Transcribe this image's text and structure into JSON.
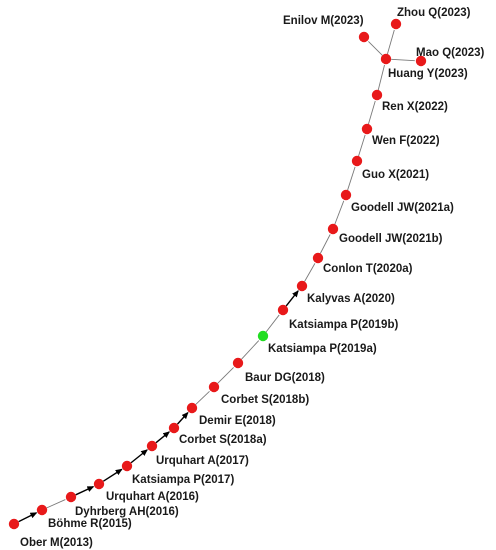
{
  "colors": {
    "node": "#e8191a",
    "highlight_node": "#22dd22",
    "edge": "#7a7a7a",
    "arrow": "#000000",
    "label": "#1a1a1a"
  },
  "nodes": [
    {
      "id": "ober2013",
      "label": "Ober M(2013)"
    },
    {
      "id": "bohme2015",
      "label": "Böhme R(2015)"
    },
    {
      "id": "dyhrberg2016",
      "label": "Dyhrberg AH(2016)"
    },
    {
      "id": "urquhart2016",
      "label": "Urquhart A(2016)"
    },
    {
      "id": "katsiampa2017",
      "label": "Katsiampa P(2017)"
    },
    {
      "id": "urquhart2017",
      "label": "Urquhart A(2017)"
    },
    {
      "id": "corbet2018a",
      "label": "Corbet S(2018a)"
    },
    {
      "id": "demir2018",
      "label": "Demir E(2018)"
    },
    {
      "id": "corbet2018b",
      "label": "Corbet S(2018b)"
    },
    {
      "id": "baur2018",
      "label": "Baur DG(2018)"
    },
    {
      "id": "katsiampa2019a",
      "label": "Katsiampa P(2019a)",
      "highlight": true
    },
    {
      "id": "katsiampa2019b",
      "label": "Katsiampa P(2019b)"
    },
    {
      "id": "kalyvas2020",
      "label": "Kalyvas A(2020)"
    },
    {
      "id": "conlon2020a",
      "label": "Conlon T(2020a)"
    },
    {
      "id": "goodell2021b",
      "label": "Goodell JW(2021b)"
    },
    {
      "id": "goodell2021a",
      "label": "Goodell JW(2021a)"
    },
    {
      "id": "guo2021",
      "label": "Guo X(2021)"
    },
    {
      "id": "wen2022",
      "label": "Wen F(2022)"
    },
    {
      "id": "ren2022",
      "label": "Ren X(2022)"
    },
    {
      "id": "huang2023",
      "label": "Huang Y(2023)"
    },
    {
      "id": "enilov2023",
      "label": "Enilov M(2023)"
    },
    {
      "id": "zhou2023",
      "label": "Zhou Q(2023)"
    },
    {
      "id": "mao2023",
      "label": "Mao Q(2023)"
    }
  ],
  "edges": [
    {
      "from": "ober2013",
      "to": "bohme2015",
      "arrow": true
    },
    {
      "from": "bohme2015",
      "to": "dyhrberg2016",
      "arrow": false
    },
    {
      "from": "dyhrberg2016",
      "to": "urquhart2016",
      "arrow": true
    },
    {
      "from": "urquhart2016",
      "to": "katsiampa2017",
      "arrow": true
    },
    {
      "from": "katsiampa2017",
      "to": "urquhart2017",
      "arrow": true
    },
    {
      "from": "urquhart2017",
      "to": "corbet2018a",
      "arrow": true
    },
    {
      "from": "corbet2018a",
      "to": "demir2018",
      "arrow": true
    },
    {
      "from": "demir2018",
      "to": "corbet2018b",
      "arrow": false
    },
    {
      "from": "corbet2018b",
      "to": "baur2018",
      "arrow": false
    },
    {
      "from": "baur2018",
      "to": "katsiampa2019a",
      "arrow": false
    },
    {
      "from": "katsiampa2019a",
      "to": "katsiampa2019b",
      "arrow": false
    },
    {
      "from": "katsiampa2019b",
      "to": "kalyvas2020",
      "arrow": true
    },
    {
      "from": "kalyvas2020",
      "to": "conlon2020a",
      "arrow": false
    },
    {
      "from": "conlon2020a",
      "to": "goodell2021b",
      "arrow": false
    },
    {
      "from": "goodell2021b",
      "to": "goodell2021a",
      "arrow": false
    },
    {
      "from": "goodell2021a",
      "to": "guo2021",
      "arrow": false
    },
    {
      "from": "guo2021",
      "to": "wen2022",
      "arrow": false
    },
    {
      "from": "wen2022",
      "to": "ren2022",
      "arrow": false
    },
    {
      "from": "ren2022",
      "to": "huang2023",
      "arrow": false
    },
    {
      "from": "huang2023",
      "to": "enilov2023",
      "arrow": false
    },
    {
      "from": "huang2023",
      "to": "zhou2023",
      "arrow": false
    },
    {
      "from": "huang2023",
      "to": "mao2023",
      "arrow": false
    }
  ]
}
